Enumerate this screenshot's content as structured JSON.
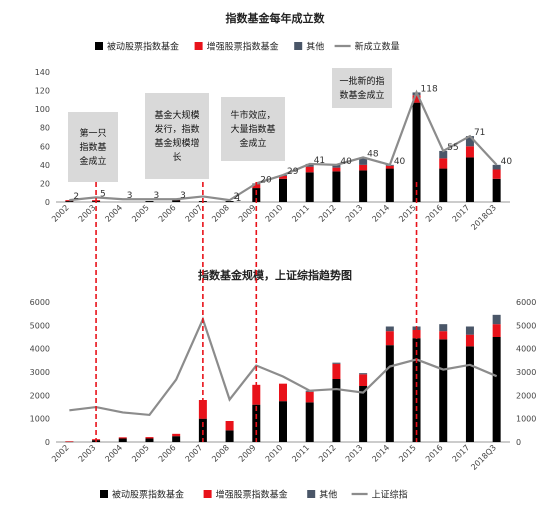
{
  "chart_data": [
    {
      "type": "bar",
      "stacked": true,
      "title": "指数基金每年成立数",
      "xlabel": "",
      "ylabel": "",
      "categories": [
        "2002",
        "2003",
        "2004",
        "2005",
        "2006",
        "2007",
        "2008",
        "2009",
        "2010",
        "2011",
        "2012",
        "2013",
        "2014",
        "2015",
        "2016",
        "2017",
        "2018Q3"
      ],
      "ylim": [
        0,
        140
      ],
      "yticks": [
        0,
        20,
        40,
        60,
        80,
        100,
        120,
        140
      ],
      "legend_position": "top",
      "grid": false,
      "series": [
        {
          "name": "被动股票指数基金",
          "type": "bar",
          "color": "#000000",
          "values": [
            1,
            1,
            0,
            1,
            2,
            1,
            1,
            15,
            25,
            32,
            33,
            34,
            36,
            107,
            36,
            48,
            25
          ]
        },
        {
          "name": "增强股票指数基金",
          "type": "bar",
          "color": "#e8121a",
          "values": [
            1,
            1,
            0,
            0,
            1,
            0,
            0,
            4,
            3,
            6,
            4,
            6,
            3,
            8,
            11,
            12,
            10
          ]
        },
        {
          "name": "其他",
          "type": "bar",
          "color": "#4a5668",
          "values": [
            0,
            0,
            0,
            0,
            0,
            0,
            0,
            1,
            1,
            3,
            3,
            8,
            1,
            3,
            8,
            11,
            5
          ]
        },
        {
          "name": "新成立数量",
          "type": "line",
          "color": "#8c8c8c",
          "values": [
            2,
            5,
            3,
            3,
            3,
            6,
            2,
            20,
            29,
            41,
            40,
            48,
            40,
            118,
            55,
            71,
            40
          ]
        }
      ],
      "line_label_texts": [
        "2",
        "5",
        "3",
        "3",
        "3",
        "",
        "2",
        "20",
        "29",
        "41",
        "40",
        "48",
        "40",
        "118",
        "55",
        "71",
        "40"
      ],
      "extra_labels": [
        {
          "category": "2008",
          "text": "1"
        }
      ],
      "annotations": [
        {
          "text_lines": [
            "第一只",
            "指数基",
            "金成立"
          ],
          "category": "2003"
        },
        {
          "text_lines": [
            "基金大规模",
            "发行，指数",
            "基金规模增",
            "长"
          ],
          "category": "2007"
        },
        {
          "text_lines": [
            "牛市效应，",
            "大量指数基",
            "金成立"
          ],
          "category": "2009"
        },
        {
          "text_lines": [
            "一批新的指",
            "数基金成立"
          ],
          "category": "2015"
        }
      ]
    },
    {
      "type": "bar",
      "stacked": true,
      "title": "指数基金规模，上证综指趋势图",
      "xlabel": "",
      "ylabel": "",
      "categories": [
        "2002",
        "2003",
        "2004",
        "2005",
        "2006",
        "2007",
        "2008",
        "2009",
        "2010",
        "2011",
        "2012",
        "2013",
        "2014",
        "2015",
        "2016",
        "2017",
        "2018Q3"
      ],
      "ylim": [
        0,
        6000
      ],
      "yticks": [
        0,
        1000,
        2000,
        3000,
        4000,
        5000,
        6000
      ],
      "y2lim": [
        0,
        6000
      ],
      "y2ticks": [
        0,
        1000,
        2000,
        3000,
        4000,
        5000,
        6000
      ],
      "legend_position": "bottom",
      "grid": false,
      "series": [
        {
          "name": "被动股票指数基金",
          "type": "bar",
          "color": "#000000",
          "values": [
            20,
            80,
            150,
            150,
            250,
            1000,
            500,
            1600,
            1750,
            1700,
            2700,
            2400,
            4150,
            4450,
            4400,
            4100,
            4500
          ]
        },
        {
          "name": "增强股票指数基金",
          "type": "bar",
          "color": "#e8121a",
          "values": [
            10,
            40,
            50,
            60,
            100,
            800,
            400,
            850,
            750,
            450,
            650,
            500,
            600,
            350,
            350,
            500,
            550
          ]
        },
        {
          "name": "其他",
          "type": "bar",
          "color": "#4a5668",
          "values": [
            0,
            0,
            0,
            0,
            0,
            0,
            0,
            0,
            0,
            50,
            50,
            50,
            200,
            150,
            300,
            350,
            400
          ]
        },
        {
          "name": "上证综指",
          "type": "line",
          "axis": "right",
          "color": "#8c8c8c",
          "values": [
            1357,
            1497,
            1267,
            1161,
            2675,
            5261,
            1820,
            3277,
            2808,
            2199,
            2269,
            2116,
            3235,
            3539,
            3104,
            3307,
            2821
          ]
        }
      ]
    }
  ],
  "vertical_markers": [
    "2003",
    "2007",
    "2009",
    "2015"
  ]
}
